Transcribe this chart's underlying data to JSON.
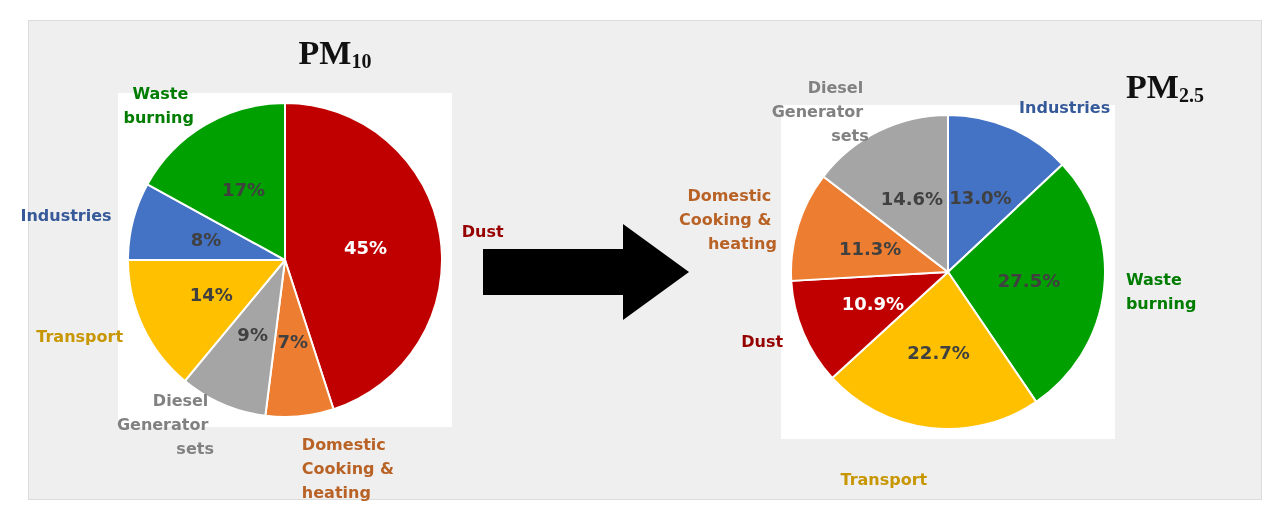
{
  "chart_data": [
    {
      "type": "pie",
      "title": "PM$_{10}$",
      "categories": [
        "Dust",
        "Domestic Cooking & heating",
        "Diesel Generator sets",
        "Transport",
        "Industries",
        "Waste burning"
      ],
      "values": [
        45,
        7,
        9,
        14,
        8,
        17
      ],
      "colors": [
        "#c00000",
        "#ed7d31",
        "#a5a5a5",
        "#ffc000",
        "#4472c4",
        "#00a000"
      ],
      "value_labels": [
        "45%",
        "7%",
        "9%",
        "14%",
        "8%",
        "17%"
      ]
    },
    {
      "type": "pie",
      "title": "PM$_{2.5}$",
      "categories": [
        "Industries",
        "Waste burning",
        "Transport",
        "Dust",
        "Domestic Cooking & heating",
        "Diesel Generator sets"
      ],
      "values": [
        13.0,
        27.5,
        22.7,
        10.9,
        11.3,
        14.6
      ],
      "colors": [
        "#4472c4",
        "#00a000",
        "#ffc000",
        "#c00000",
        "#ed7d31",
        "#a5a5a5"
      ],
      "value_labels": [
        "13.0%",
        "27.5%",
        "22.7%",
        "10.9%",
        "11.3%",
        "14.6%"
      ]
    }
  ]
}
